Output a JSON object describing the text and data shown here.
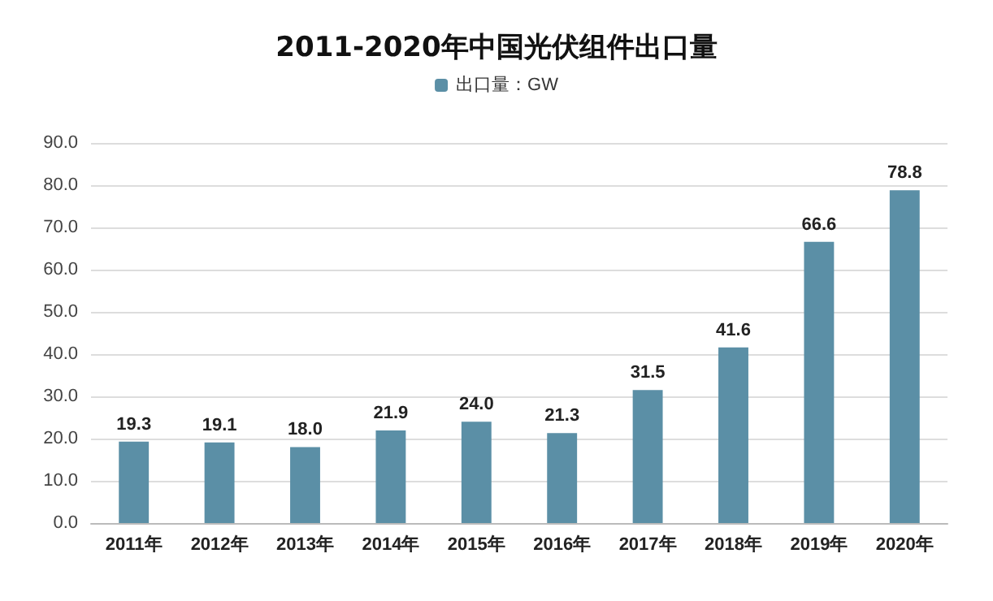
{
  "chart_data": {
    "type": "bar",
    "title": "2011-2020年中国光伏组件出口量",
    "categories": [
      "2011年",
      "2012年",
      "2013年",
      "2014年",
      "2015年",
      "2016年",
      "2017年",
      "2018年",
      "2019年",
      "2020年"
    ],
    "series": [
      {
        "name": "出口量：GW",
        "color": "#5b8fa6",
        "values": [
          19.3,
          19.1,
          18.0,
          21.9,
          24.0,
          21.3,
          31.5,
          41.6,
          66.6,
          78.8
        ],
        "value_labels": [
          "19.3",
          "19.1",
          "18.0",
          "21.9",
          "24.0",
          "21.3",
          "31.5",
          "41.6",
          "66.6",
          "78.8"
        ]
      }
    ],
    "ylim": [
      0,
      90
    ],
    "yticks": [
      {
        "value": 0,
        "label": "0.0"
      },
      {
        "value": 10,
        "label": "10.0"
      },
      {
        "value": 20,
        "label": "20.0"
      },
      {
        "value": 30,
        "label": "30.0"
      },
      {
        "value": 40,
        "label": "40.0"
      },
      {
        "value": 50,
        "label": "50.0"
      },
      {
        "value": 60,
        "label": "60.0"
      },
      {
        "value": 70,
        "label": "70.0"
      },
      {
        "value": 80,
        "label": "80.0"
      },
      {
        "value": 90,
        "label": "90.0"
      }
    ],
    "grid": "y",
    "legend": "top"
  }
}
